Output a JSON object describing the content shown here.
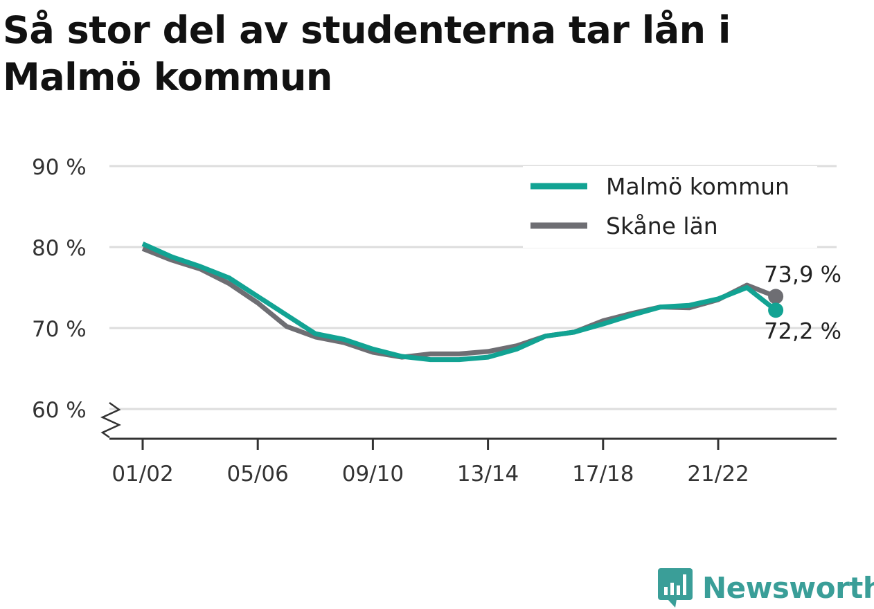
{
  "title": "Så stor del av studenterna tar lån i Malmö kommun",
  "brand": {
    "name": "Newsworthy",
    "icon": "newsworthy-logo-icon",
    "color": "#3a9e98"
  },
  "chart_data": {
    "type": "line",
    "title": "Så stor del av studenterna tar lån i Malmö kommun",
    "xlabel": "",
    "ylabel": "",
    "ylim": [
      60,
      90
    ],
    "y_ticks": [
      60,
      70,
      80,
      90
    ],
    "y_tick_labels": [
      "60 %",
      "70 %",
      "80 %",
      "90 %"
    ],
    "y_axis_break": true,
    "grid": true,
    "legend_position": "top-right",
    "x": [
      "01/02",
      "02/03",
      "03/04",
      "04/05",
      "05/06",
      "06/07",
      "07/08",
      "08/09",
      "09/10",
      "10/11",
      "11/12",
      "12/13",
      "13/14",
      "14/15",
      "15/16",
      "16/17",
      "17/18",
      "18/19",
      "19/20",
      "20/21",
      "21/22",
      "22/23",
      "23/24"
    ],
    "x_tick_labels": [
      "01/02",
      "05/06",
      "09/10",
      "13/14",
      "17/18",
      "21/22"
    ],
    "series": [
      {
        "name": "Malmö kommun",
        "color": "#12a393",
        "values": [
          80.4,
          78.8,
          77.6,
          76.2,
          73.9,
          71.6,
          69.3,
          68.6,
          67.4,
          66.5,
          66.1,
          66.1,
          66.4,
          67.4,
          69.0,
          69.5,
          70.5,
          71.6,
          72.6,
          72.8,
          73.6,
          75.0,
          72.2
        ]
      },
      {
        "name": "Skåne län",
        "color": "#6e6e73",
        "values": [
          79.8,
          78.4,
          77.3,
          75.5,
          73.1,
          70.2,
          68.9,
          68.2,
          67.0,
          66.4,
          66.8,
          66.8,
          67.1,
          67.8,
          69.0,
          69.5,
          70.9,
          71.8,
          72.6,
          72.5,
          73.5,
          75.3,
          73.9
        ]
      }
    ],
    "end_labels": [
      {
        "series": "Skåne län",
        "text": "73,9 %"
      },
      {
        "series": "Malmö kommun",
        "text": "72,2 %"
      }
    ]
  }
}
